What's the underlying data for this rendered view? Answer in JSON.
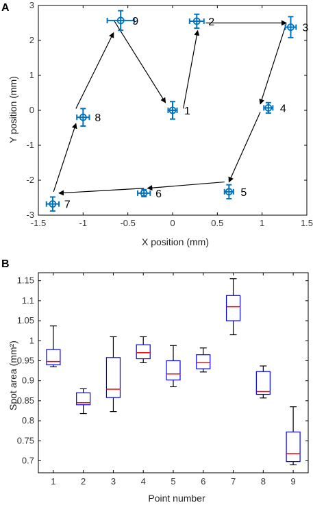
{
  "chart_data": [
    {
      "panel_label": "A",
      "type": "scatter",
      "xlabel": "X position (mm)",
      "ylabel": "Y position (mm)",
      "xlim": [
        -1.5,
        1.5
      ],
      "ylim": [
        -3,
        3
      ],
      "xticks": [
        "-1.5",
        "-1",
        "-0.5",
        "0",
        "0.5",
        "1",
        "1.5"
      ],
      "yticks": [
        "-3",
        "-2",
        "-1",
        "0",
        "1",
        "2",
        "3"
      ],
      "grid": false,
      "marker_color": "#0072BD",
      "points": [
        {
          "label": "1",
          "x": 0.0,
          "y": 0.0,
          "xerr": 0.05,
          "yerr": 0.25
        },
        {
          "label": "2",
          "x": 0.27,
          "y": 2.55,
          "xerr": 0.08,
          "yerr": 0.2
        },
        {
          "label": "3",
          "x": 1.32,
          "y": 2.38,
          "xerr": 0.06,
          "yerr": 0.3
        },
        {
          "label": "4",
          "x": 1.07,
          "y": 0.07,
          "xerr": 0.05,
          "yerr": 0.15
        },
        {
          "label": "5",
          "x": 0.63,
          "y": -2.33,
          "xerr": 0.05,
          "yerr": 0.2
        },
        {
          "label": "6",
          "x": -0.32,
          "y": -2.37,
          "xerr": 0.07,
          "yerr": 0.1
        },
        {
          "label": "7",
          "x": -1.34,
          "y": -2.68,
          "xerr": 0.07,
          "yerr": 0.2
        },
        {
          "label": "8",
          "x": -1.0,
          "y": -0.2,
          "xerr": 0.07,
          "yerr": 0.25
        },
        {
          "label": "9",
          "x": -0.58,
          "y": 2.57,
          "xerr": 0.15,
          "yerr": 0.28
        }
      ],
      "arrows": [
        {
          "from": [
            -0.65,
            2.55
          ],
          "to": [
            -0.08,
            0.22
          ]
        },
        {
          "from": [
            0.12,
            0.05
          ],
          "to": [
            0.28,
            2.28
          ]
        },
        {
          "from": [
            0.37,
            2.5
          ],
          "to": [
            1.27,
            2.5
          ]
        },
        {
          "from": [
            1.27,
            2.48
          ],
          "to": [
            0.98,
            0.18
          ]
        },
        {
          "from": [
            0.98,
            -0.05
          ],
          "to": [
            0.63,
            -2.05
          ]
        },
        {
          "from": [
            0.58,
            -2.05
          ],
          "to": [
            -0.28,
            -2.23
          ]
        },
        {
          "from": [
            -0.32,
            -2.23
          ],
          "to": [
            -1.27,
            -2.37
          ]
        },
        {
          "from": [
            -1.33,
            -2.33
          ],
          "to": [
            -1.08,
            -0.38
          ]
        },
        {
          "from": [
            -1.08,
            0.05
          ],
          "to": [
            -0.66,
            2.22
          ]
        }
      ]
    },
    {
      "panel_label": "B",
      "type": "box",
      "xlabel": "Point number",
      "ylabel": "Spot area (mm²)",
      "ylim": [
        0.67,
        1.17
      ],
      "categories": [
        "1",
        "2",
        "3",
        "4",
        "5",
        "6",
        "7",
        "8",
        "9"
      ],
      "yticks": [
        "0.7",
        "0.75",
        "0.8",
        "0.85",
        "0.9",
        "0.95",
        "1",
        "1.05",
        "1.1",
        "1.15"
      ],
      "box_color": "#0000FF",
      "median_color": "#FF0000",
      "whisker_color": "#000000",
      "boxes": [
        {
          "label": "1",
          "min": 0.935,
          "q1": 0.94,
          "median": 0.948,
          "q3": 0.978,
          "max": 1.037
        },
        {
          "label": "2",
          "min": 0.818,
          "q1": 0.84,
          "median": 0.845,
          "q3": 0.87,
          "max": 0.88
        },
        {
          "label": "3",
          "min": 0.823,
          "q1": 0.858,
          "median": 0.879,
          "q3": 0.958,
          "max": 1.01
        },
        {
          "label": "4",
          "min": 0.945,
          "q1": 0.955,
          "median": 0.97,
          "q3": 0.99,
          "max": 1.01
        },
        {
          "label": "5",
          "min": 0.885,
          "q1": 0.902,
          "median": 0.917,
          "q3": 0.95,
          "max": 0.988
        },
        {
          "label": "6",
          "min": 0.922,
          "q1": 0.93,
          "median": 0.945,
          "q3": 0.965,
          "max": 0.982
        },
        {
          "label": "7",
          "min": 1.015,
          "q1": 1.05,
          "median": 1.085,
          "q3": 1.113,
          "max": 1.155
        },
        {
          "label": "8",
          "min": 0.857,
          "q1": 0.866,
          "median": 0.873,
          "q3": 0.923,
          "max": 0.937
        },
        {
          "label": "9",
          "min": 0.69,
          "q1": 0.698,
          "median": 0.718,
          "q3": 0.772,
          "max": 0.835
        }
      ]
    }
  ]
}
